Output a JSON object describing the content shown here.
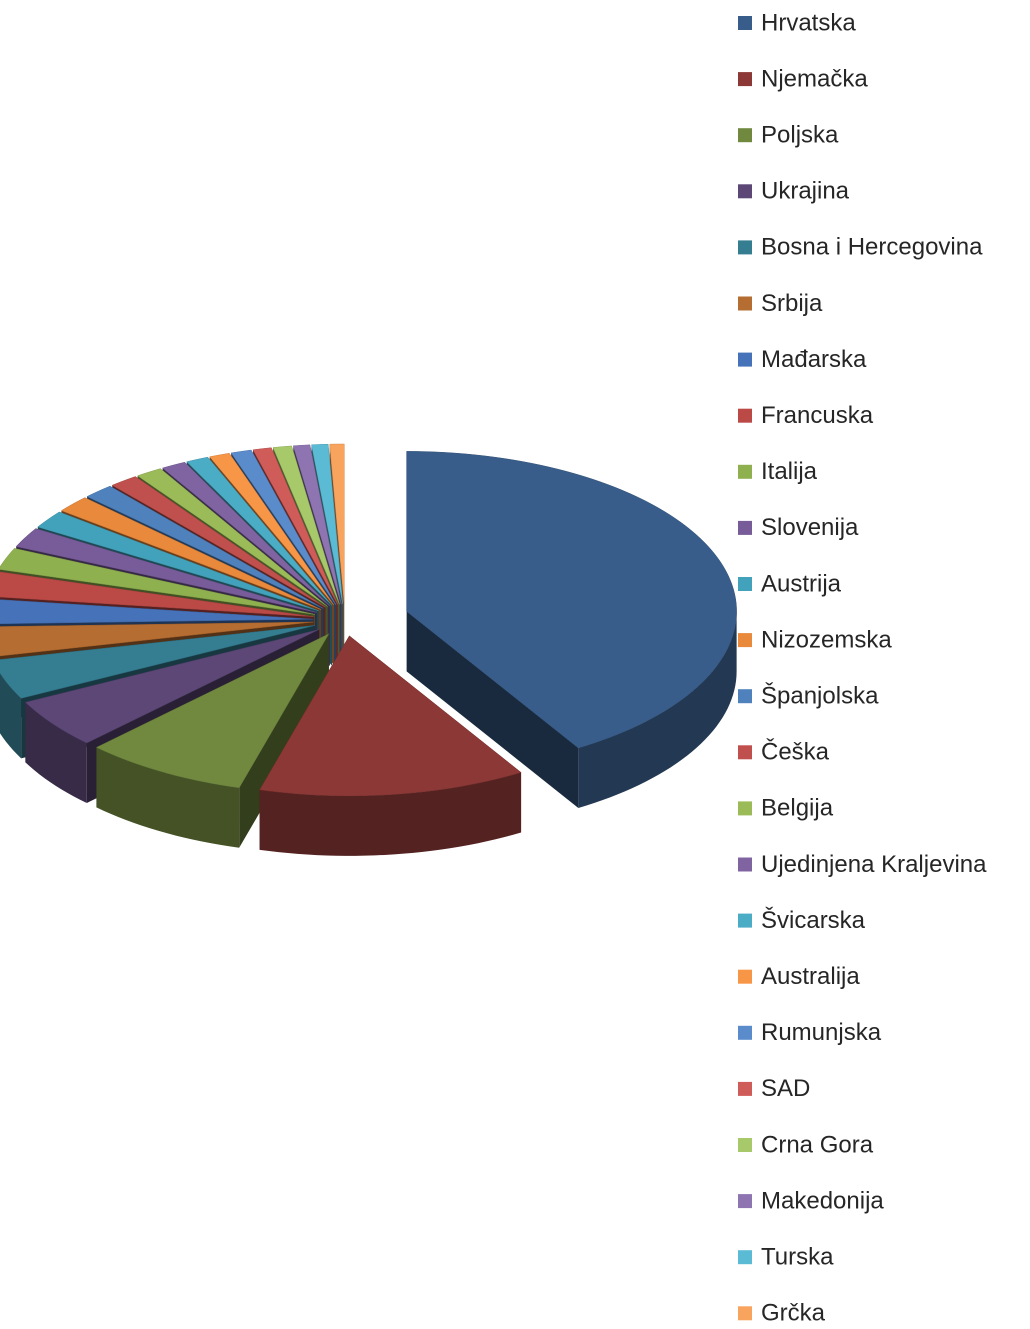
{
  "chart_data": {
    "type": "pie3d",
    "categories": [
      "Hrvatska",
      "Njemačka",
      "Poljska",
      "Ukrajina",
      "Bosna i Hercegovina",
      "Srbija",
      "Mađarska",
      "Francuska",
      "Italija",
      "Slovenija",
      "Austrija",
      "Nizozemska",
      "Španjolska",
      "Češka",
      "Belgija",
      "Ujedinjena Kraljevina",
      "Švicarska",
      "Australija",
      "Rumunjska",
      "SAD",
      "Crna Gora",
      "Makedonija",
      "Turska",
      "Grčka"
    ],
    "values": [
      41,
      13,
      8,
      5,
      4,
      3,
      2.5,
      2.5,
      2.2,
      2,
      1.8,
      1.7,
      1.5,
      1.4,
      1.3,
      1.2,
      1.1,
      1.0,
      1.0,
      0.9,
      0.9,
      0.8,
      0.8,
      0.7
    ],
    "colors": [
      "#385d8a",
      "#8c3836",
      "#71893f",
      "#5c4776",
      "#357d91",
      "#b66d31",
      "#4572b8",
      "#bb4a47",
      "#8fb04f",
      "#775c99",
      "#43a2bb",
      "#e8893b",
      "#4f81bd",
      "#c0504d",
      "#9bbb59",
      "#8064a2",
      "#4bacc6",
      "#f79646",
      "#5a8ccb",
      "#d05c59",
      "#a8c96a",
      "#8f74b2",
      "#5bbbd4",
      "#f8a45e"
    ],
    "legend": "right"
  }
}
